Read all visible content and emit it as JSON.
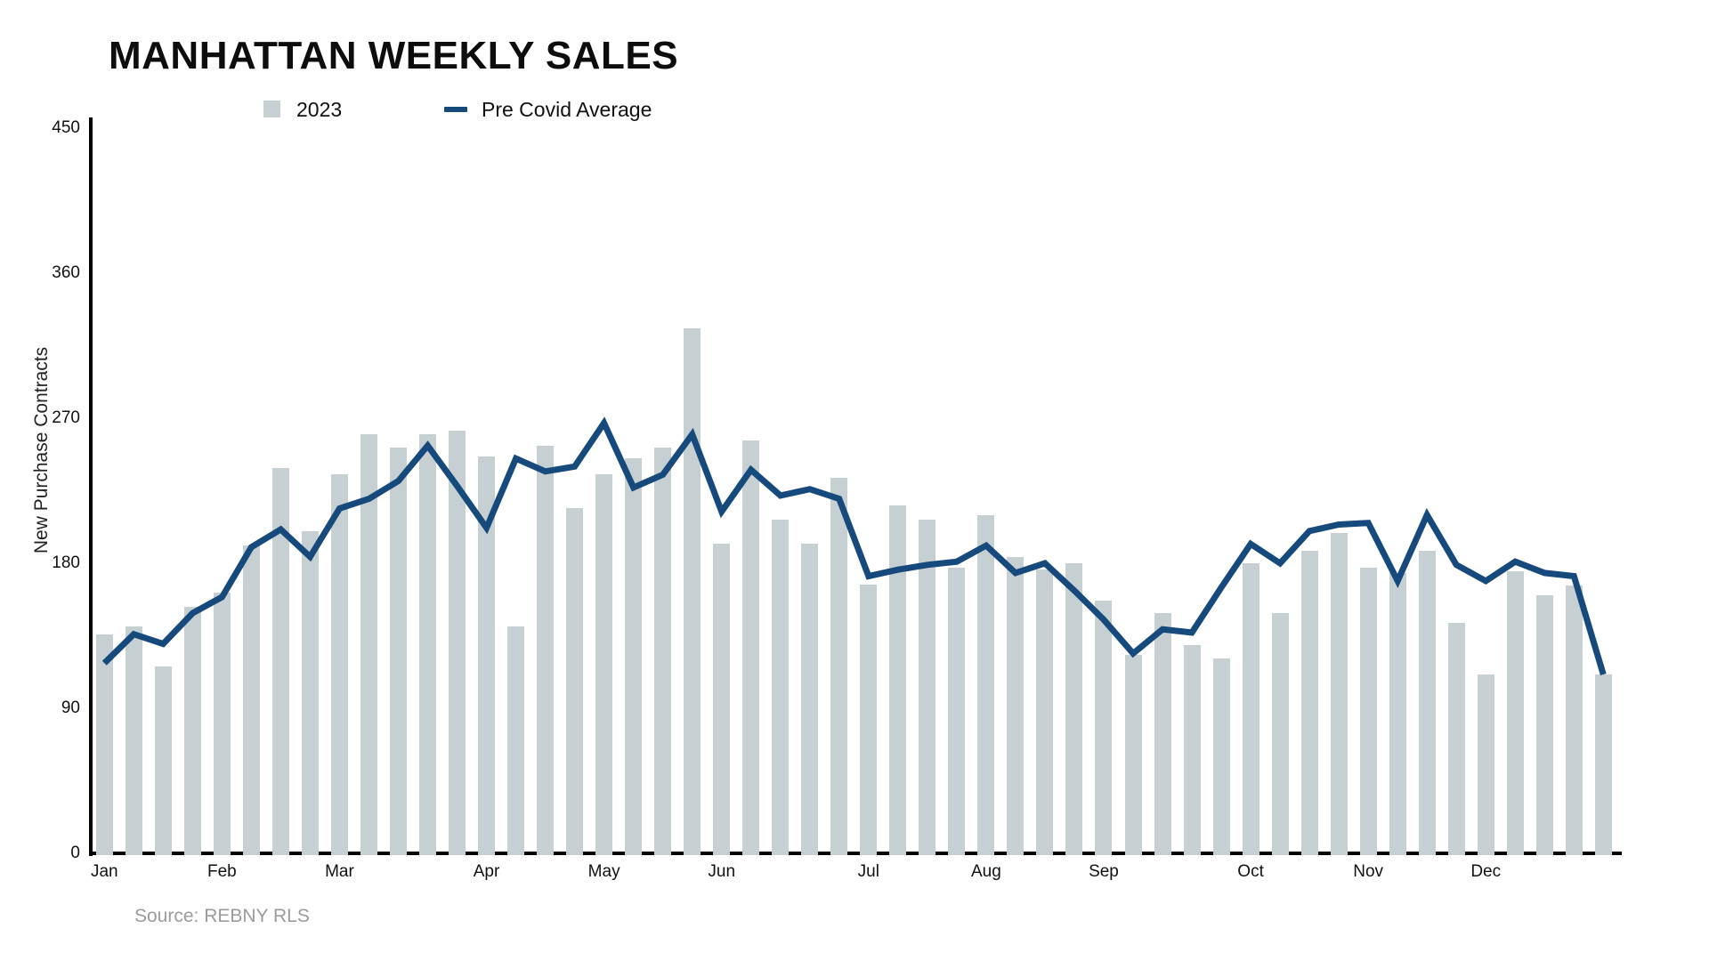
{
  "title": "MANHATTAN WEEKLY SALES",
  "legend": {
    "bar_label": "2023",
    "line_label": "Pre Covid Average"
  },
  "y_axis": {
    "label": "New Purchase Contracts",
    "ticks": [
      450,
      360,
      270,
      180,
      90,
      0
    ]
  },
  "source": "Source: REBNY RLS",
  "colors": {
    "bar": "#c6d0d3",
    "line": "#174a7c",
    "axis": "#000000",
    "source_text": "#9b9b9b"
  },
  "chart_data": {
    "type": "bar",
    "title": "MANHATTAN WEEKLY SALES",
    "xlabel": "",
    "ylabel": "New Purchase Contracts",
    "ylim": [
      0,
      450
    ],
    "yticks": [
      0,
      90,
      180,
      270,
      360,
      450
    ],
    "grid": false,
    "legend_position": "top",
    "x_unit": "week-of-year",
    "months": [
      {
        "label": "Jan",
        "week": 0
      },
      {
        "label": "Feb",
        "week": 4
      },
      {
        "label": "Mar",
        "week": 8
      },
      {
        "label": "Apr",
        "week": 13
      },
      {
        "label": "May",
        "week": 17
      },
      {
        "label": "Jun",
        "week": 21
      },
      {
        "label": "Jul",
        "week": 26
      },
      {
        "label": "Aug",
        "week": 30
      },
      {
        "label": "Sep",
        "week": 34
      },
      {
        "label": "Oct",
        "week": 39
      },
      {
        "label": "Nov",
        "week": 43
      },
      {
        "label": "Dec",
        "week": 47
      }
    ],
    "series": [
      {
        "name": "2023",
        "type": "bar",
        "values": [
          136,
          141,
          116,
          153,
          162,
          191,
          239,
          200,
          235,
          260,
          252,
          260,
          262,
          246,
          141,
          253,
          214,
          235,
          245,
          252,
          326,
          192,
          256,
          207,
          192,
          233,
          167,
          216,
          207,
          177,
          210,
          184,
          176,
          180,
          157,
          123,
          149,
          129,
          121,
          180,
          149,
          188,
          199,
          177,
          174,
          188,
          143,
          111,
          175,
          160,
          166,
          111
        ]
      },
      {
        "name": "Pre Covid Average",
        "type": "line",
        "values": [
          118,
          136,
          130,
          149,
          159,
          190,
          201,
          184,
          214,
          220,
          231,
          253,
          228,
          202,
          245,
          237,
          240,
          267,
          227,
          235,
          260,
          212,
          238,
          222,
          226,
          220,
          172,
          176,
          179,
          181,
          191,
          174,
          180,
          163,
          145,
          124,
          139,
          137,
          165,
          192,
          180,
          200,
          204,
          205,
          169,
          210,
          179,
          169,
          181,
          174,
          172,
          111
        ]
      }
    ]
  }
}
